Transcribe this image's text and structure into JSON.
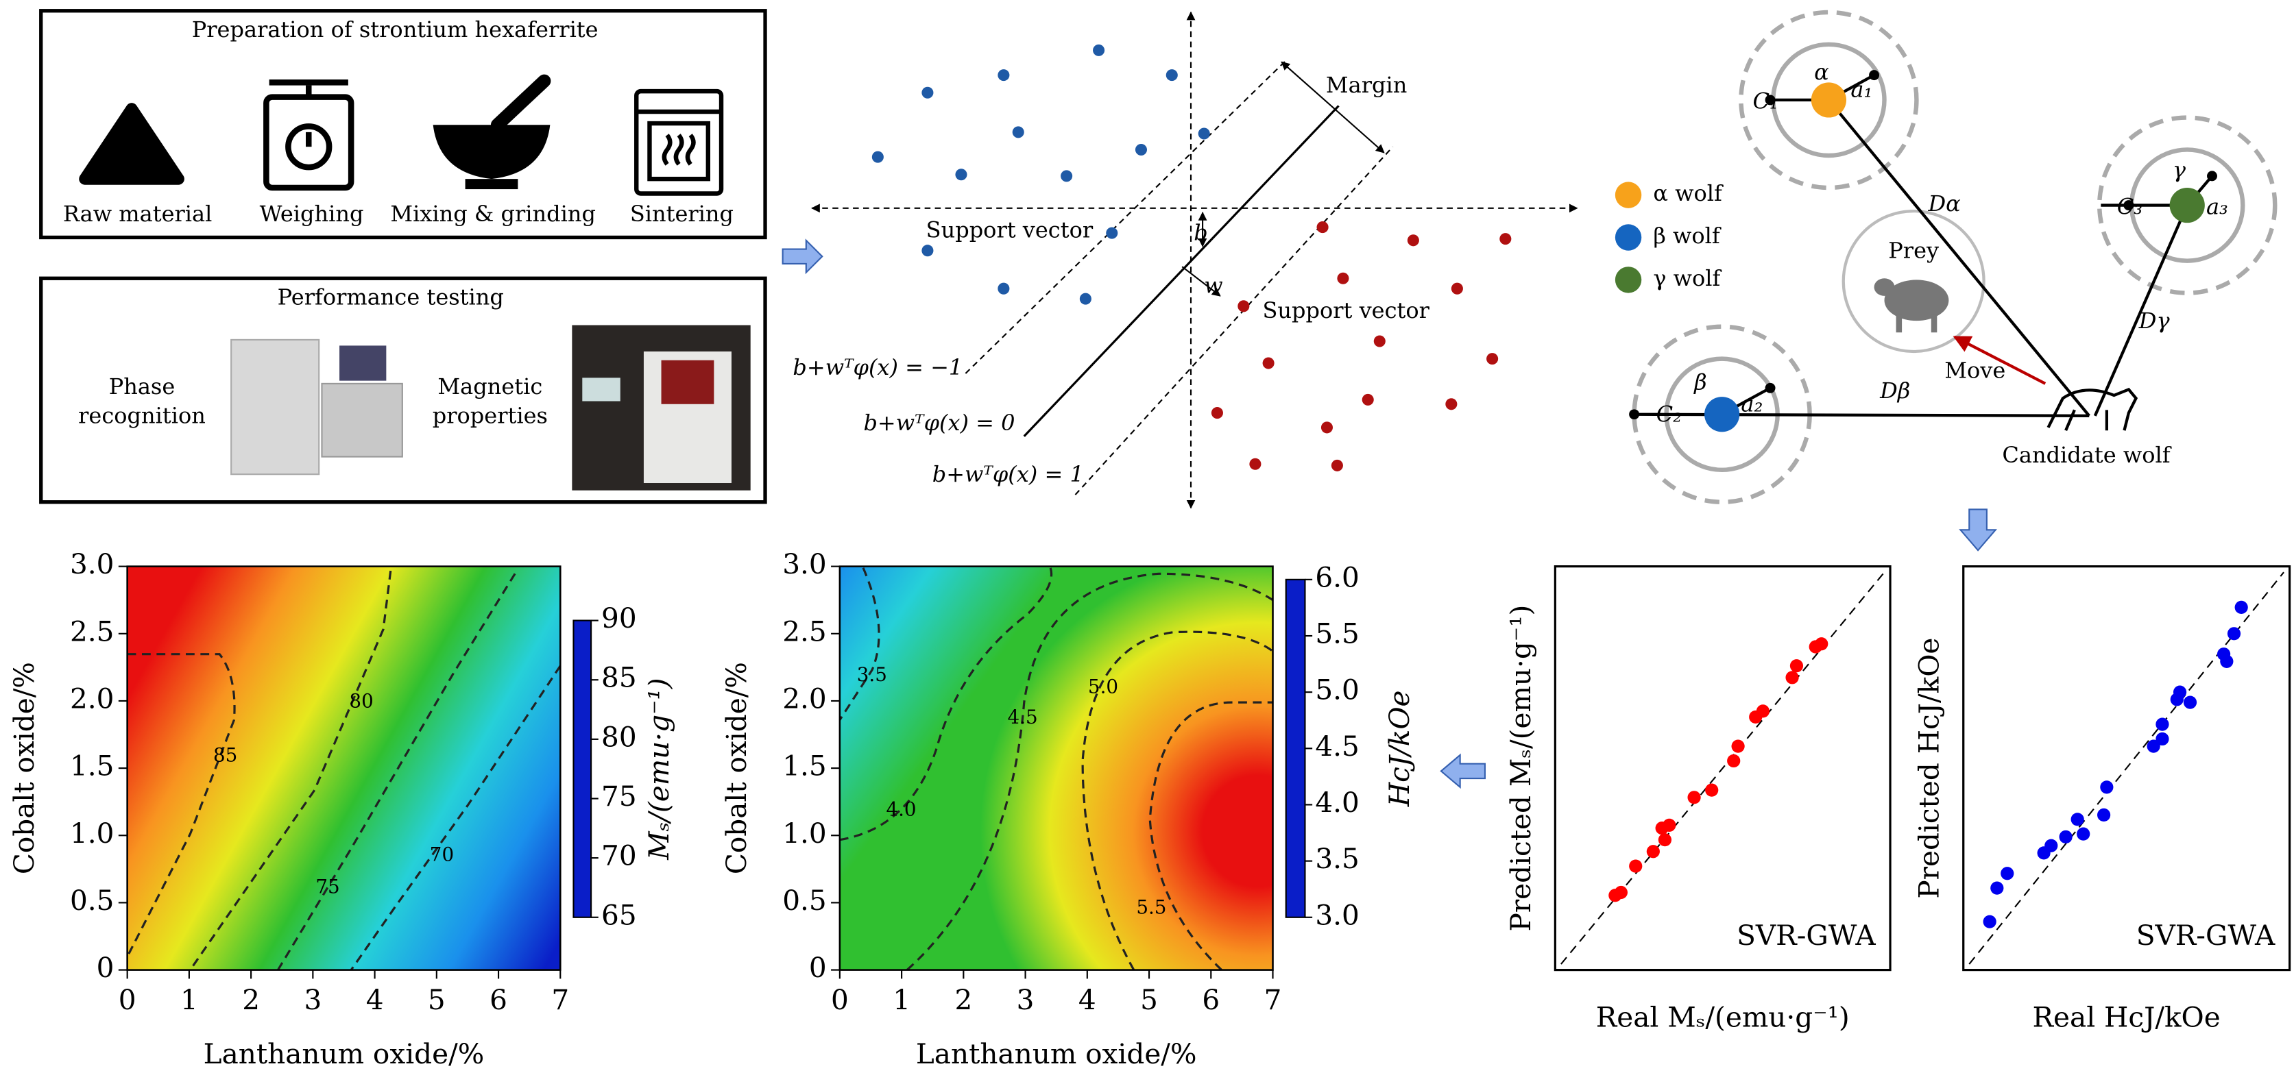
{
  "preparation": {
    "title": "Preparation of strontium hexaferrite",
    "steps": [
      "Raw material",
      "Weighing",
      "Mixing & grinding",
      "Sintering"
    ]
  },
  "testing": {
    "title": "Performance testing",
    "items": [
      [
        "Phase",
        "recognition"
      ],
      [
        "Magnetic",
        "properties"
      ]
    ]
  },
  "svm": {
    "margin": "Margin",
    "support_vector_left": "Support vector",
    "support_vector_right": "Support vector",
    "b": "b",
    "w": "w",
    "equations": [
      "b+wᵀφ(x) = −1",
      "b+wᵀφ(x) = 0",
      "b+wᵀφ(x) = 1"
    ]
  },
  "gwo": {
    "legend": [
      "α wolf",
      "β wolf",
      "γ wolf"
    ],
    "alpha": {
      "symbol": "α",
      "a": "a₁",
      "c": "C₁",
      "d": "Dα"
    },
    "beta": {
      "symbol": "β",
      "a": "a₂",
      "c": "C₂",
      "d": "Dβ"
    },
    "gamma": {
      "symbol": "γ",
      "a": "a₃",
      "c": "C₃",
      "d": "Dγ"
    },
    "prey": "Prey",
    "move": "Move",
    "candidate": "Candidate wolf"
  },
  "chart_data": [
    {
      "type": "contour",
      "xlabel": "Lanthanum oxide/%",
      "ylabel": "Cobalt oxide/%",
      "xlim": [
        0,
        7
      ],
      "ylim": [
        0,
        3
      ],
      "xticks": [
        0,
        1,
        2,
        3,
        4,
        5,
        6,
        7
      ],
      "yticks": [
        0,
        0.5,
        {
          "value": 1,
          "label": "1.0"
        },
        1.5,
        {
          "value": 2,
          "label": "2.0"
        },
        2.5,
        {
          "value": 3,
          "label": "3.0"
        }
      ],
      "colorbar": {
        "label": "Mₛ/(emu·g⁻¹)",
        "lim": [
          65,
          90
        ],
        "ticks": [
          65,
          70,
          75,
          80,
          85,
          90
        ],
        "colors": [
          "#0a1ec8",
          "#1a90ec",
          "#26d0d8",
          "#30c030",
          "#e6e81e",
          "#f89420",
          "#e81010"
        ]
      },
      "contour_levels": [
        85,
        80,
        75,
        70
      ]
    },
    {
      "type": "contour",
      "xlabel": "Lanthanum oxide/%",
      "ylabel": "Cobalt oxide/%",
      "xlim": [
        0,
        7
      ],
      "ylim": [
        0,
        3
      ],
      "xticks": [
        0,
        1,
        2,
        3,
        4,
        5,
        6,
        7
      ],
      "yticks": [
        0,
        0.5,
        {
          "value": 1,
          "label": "1.0"
        },
        1.5,
        {
          "value": 2,
          "label": "2.0"
        },
        2.5,
        {
          "value": 3,
          "label": "3.0"
        }
      ],
      "colorbar": {
        "label": "HcJ/kOe",
        "lim": [
          3,
          6
        ],
        "ticks": [
          {
            "value": 3,
            "label": "3.0"
          },
          3.5,
          {
            "value": 4,
            "label": "4.0"
          },
          4.5,
          {
            "value": 5,
            "label": "5.0"
          },
          5.5,
          {
            "value": 6,
            "label": "6.0"
          }
        ],
        "colors": [
          "#0a1ec8",
          "#1a90ec",
          "#26d0d8",
          "#30c030",
          "#e6e81e",
          "#f89420",
          "#e81010"
        ]
      },
      "contour_levels": [
        3.5,
        4,
        4.5,
        5,
        5.5
      ],
      "contour_value_labels": [
        "3.5",
        "4.0",
        "4.5",
        "5.0",
        "5.5"
      ]
    },
    {
      "type": "scatter",
      "xlabel": "Real Mₛ/(emu·g⁻¹)",
      "ylabel": "Predicted Mₛ/(emu·g⁻¹)",
      "annotation": "SVR-GWA",
      "color": "#ff0000"
    },
    {
      "type": "scatter",
      "xlabel": "Real HcJ/kOe",
      "ylabel": "Predicted HcJ/kOe",
      "annotation": "SVR-GWA",
      "color": "#0000ee"
    }
  ]
}
